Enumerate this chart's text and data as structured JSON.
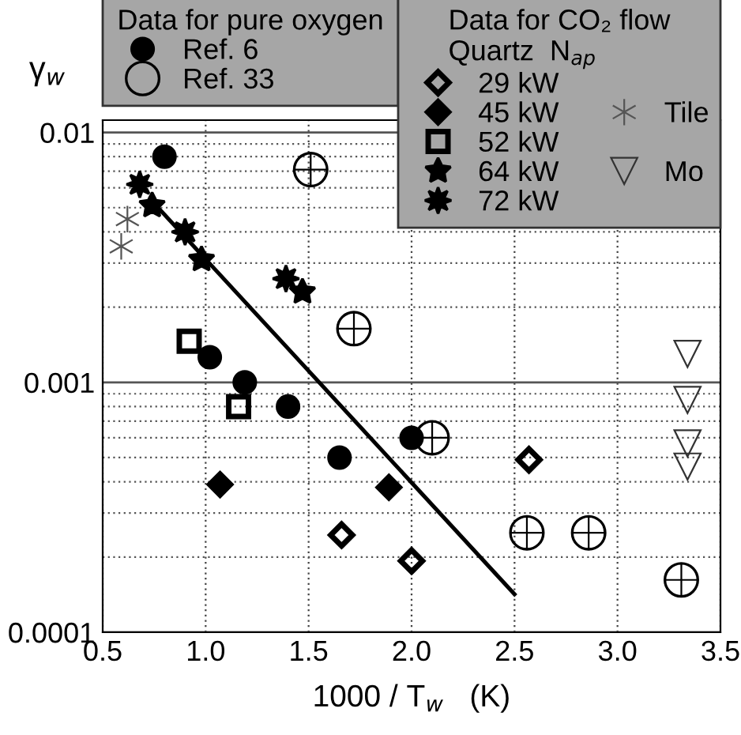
{
  "chart_data": {
    "type": "scatter",
    "xlabel": "1000 / T$_{w}$   (K)",
    "ylabel": "γ$_{w}$",
    "legend_title": "Data for CO₂ flow",
    "annotations": [
      "Data for pure oxygen",
      "Quartz  N$_{ap}$"
    ],
    "log": "y",
    "grid": true,
    "legend": "top",
    "xlim": [
      0.5,
      3.5
    ],
    "xticks": [
      {
        "value": 0.5,
        "label": "0.5"
      },
      {
        "value": 1.0,
        "label": "1.0"
      },
      {
        "value": 1.5,
        "label": "1.5"
      },
      {
        "value": 2.0,
        "label": "2.0"
      },
      {
        "value": 2.5,
        "label": "2.5"
      },
      {
        "value": 3.0,
        "label": "3.0"
      },
      {
        "value": 3.5,
        "label": "3.5"
      }
    ],
    "ylim": [
      0.0001,
      0.0112
    ],
    "yticks": [
      0.0001,
      {
        "value": 0.0002,
        "label": null
      },
      {
        "value": 0.0003,
        "label": null
      },
      {
        "value": 0.0004,
        "label": null
      },
      {
        "value": 0.0005,
        "label": null
      },
      {
        "value": 0.0006,
        "label": null
      },
      {
        "value": 0.0007,
        "label": null
      },
      {
        "value": 0.0008,
        "label": null
      },
      {
        "value": 0.0009,
        "label": null
      },
      0.001,
      {
        "value": 0.002,
        "label": null
      },
      {
        "value": 0.003,
        "label": null
      },
      {
        "value": 0.004,
        "label": null
      },
      {
        "value": 0.005,
        "label": null
      },
      {
        "value": 0.006,
        "label": null
      },
      {
        "value": 0.007,
        "label": null
      },
      {
        "value": 0.008,
        "label": null
      },
      {
        "value": 0.009,
        "label": null
      },
      0.01
    ],
    "series": [
      {
        "name": "Ref. 6",
        "color": "#000000",
        "marker": "circle",
        "x": [
          0.8,
          1.02,
          1.19,
          1.4,
          1.65,
          2.0
        ],
        "values": [
          0.008,
          0.00126,
          0.001,
          0.0008,
          0.0005,
          0.0006
        ]
      },
      {
        "name": "Ref. 33",
        "color": "#000000",
        "marker": "circle_plus",
        "x": [
          1.51,
          1.72,
          2.1,
          2.56,
          2.86,
          3.31
        ],
        "values": [
          0.0071,
          0.00164,
          0.0006,
          0.00025,
          0.00025,
          0.000162
        ]
      },
      {
        "name": "29 kW",
        "color": "#000000",
        "marker": "diamond_open",
        "x": [
          1.66,
          2.0,
          2.57
        ],
        "values": [
          0.000245,
          0.000193,
          0.00049
        ]
      },
      {
        "name": "45 kW",
        "color": "#000000",
        "marker": "diamond",
        "x": [
          1.07,
          1.89
        ],
        "values": [
          0.00039,
          0.00038
        ]
      },
      {
        "name": "52 kW",
        "color": "#000000",
        "marker": "square_open",
        "x": [
          0.92,
          1.16
        ],
        "values": [
          0.00146,
          0.0008
        ]
      },
      {
        "name": "64 kW",
        "color": "#000000",
        "marker": "star",
        "x": [
          0.74,
          0.98,
          1.47
        ],
        "values": [
          0.0051,
          0.0031,
          0.0023
        ]
      },
      {
        "name": "72 kW",
        "color": "#000000",
        "marker": "star8",
        "x": [
          0.68,
          0.9,
          1.39
        ],
        "values": [
          0.0062,
          0.004,
          0.0026
        ]
      },
      {
        "name": "Tile",
        "color": "#555555",
        "marker": "cross",
        "x": [
          0.62,
          0.59
        ],
        "values": [
          0.0045,
          0.0035
        ]
      },
      {
        "name": "Mo",
        "color": "#333333",
        "marker": "triangle_down_open",
        "x": [
          3.34,
          3.34,
          3.34,
          3.34
        ],
        "values": [
          0.0013,
          0.00085,
          0.00057,
          0.00046
        ]
      },
      {
        "type": "line",
        "color": "#000000",
        "marker": "none",
        "x": [
          0.75,
          2.5
        ],
        "values": [
          0.0052,
          0.000142
        ]
      }
    ]
  }
}
